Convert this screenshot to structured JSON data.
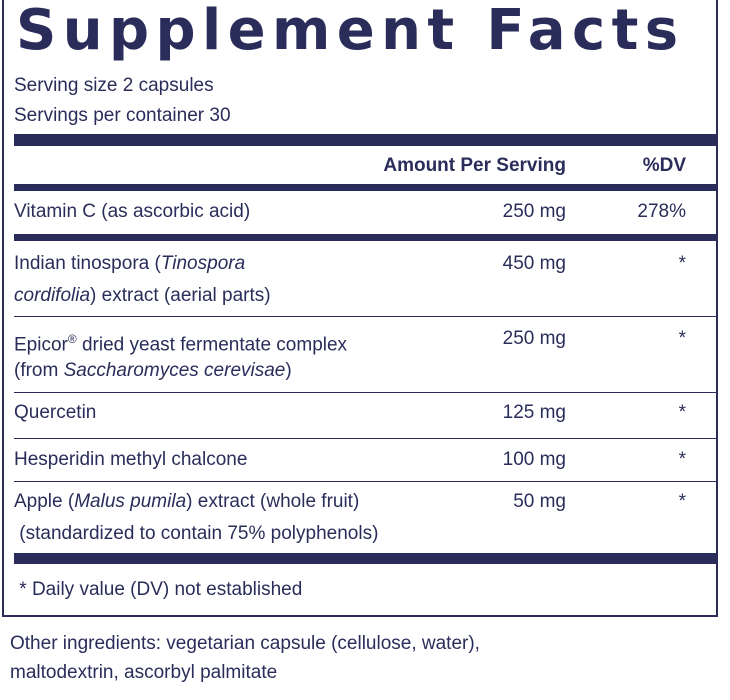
{
  "panel": {
    "title": "Supplement Facts",
    "serving_size": "Serving size  2 capsules",
    "servings_per_container": "Servings per container  30"
  },
  "table": {
    "header_amount": "Amount Per Serving",
    "header_dv": "%DV",
    "rows": [
      {
        "name_line1": "Vitamin C (as ascorbic acid)",
        "amount": "250 mg",
        "dv": "278%"
      },
      {
        "name_line1_pre": "Indian tinospora (",
        "name_line1_italic": "Tinospora",
        "name_line2_italic": "cordifolia",
        "name_line2_post": ") extract (aerial parts)",
        "amount": "450 mg",
        "dv": "*"
      },
      {
        "name_line1_pre": "Epicor",
        "name_line1_sup": "®",
        "name_line1_post": " dried yeast fermentate complex",
        "name_line2_pre": "(from ",
        "name_line2_italic": "Saccharomyces cerevisae",
        "name_line2_post": ")",
        "amount": "250 mg",
        "dv": "*"
      },
      {
        "name_line1": "Quercetin",
        "amount": "125 mg",
        "dv": "*"
      },
      {
        "name_line1": "Hesperidin methyl chalcone",
        "amount": "100 mg",
        "dv": "*"
      },
      {
        "name_line1_pre": "Apple (",
        "name_line1_italic": "Malus pumila",
        "name_line1_post": ") extract (whole fruit)",
        "name_line2": " (standardized to contain 75% polyphenols)",
        "amount": "50 mg",
        "dv": "*"
      }
    ],
    "footnote": " * Daily value (DV) not established"
  },
  "other_ingredients": {
    "line1": "Other ingredients: vegetarian capsule (cellulose, water),",
    "line2": "maltodextrin, ascorbyl palmitate"
  },
  "colors": {
    "ink": "#2a2d5a",
    "background": "#ffffff"
  }
}
